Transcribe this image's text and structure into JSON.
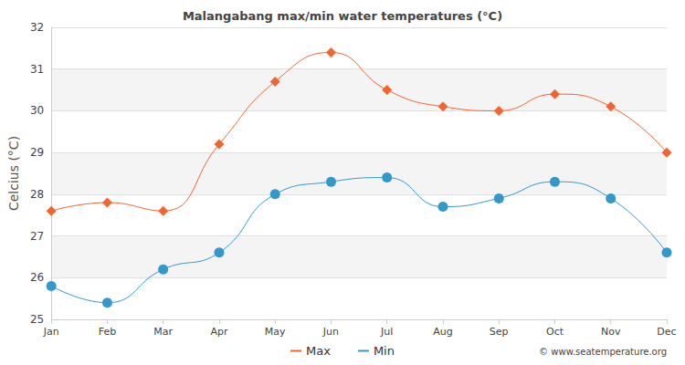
{
  "chart_data": {
    "type": "line",
    "title": "Malangabang max/min water temperatures (°C)",
    "y_label": "Celcius (°C)",
    "annotation": "© www.seatemperature.org",
    "categories": [
      "Jan",
      "Feb",
      "Mar",
      "Apr",
      "May",
      "Jun",
      "Jul",
      "Aug",
      "Sep",
      "Oct",
      "Nov",
      "Dec"
    ],
    "series": [
      {
        "name": "Max",
        "color": "#f26430",
        "marker": "diamond",
        "line_style": "smooth",
        "values": [
          27.6,
          27.8,
          27.6,
          29.2,
          30.7,
          31.4,
          30.5,
          30.1,
          30.0,
          30.4,
          30.1,
          29.0
        ]
      },
      {
        "name": "Min",
        "color": "#3399cc",
        "marker": "circle",
        "line_style": "smooth",
        "values": [
          25.8,
          25.4,
          26.2,
          26.6,
          28.0,
          28.3,
          28.4,
          27.7,
          27.9,
          28.3,
          27.9,
          26.6
        ]
      }
    ],
    "ylim": [
      25,
      32
    ],
    "yticks": [
      25,
      26,
      27,
      28,
      29,
      30,
      31,
      32
    ],
    "grid": true,
    "legend": "bottom"
  }
}
